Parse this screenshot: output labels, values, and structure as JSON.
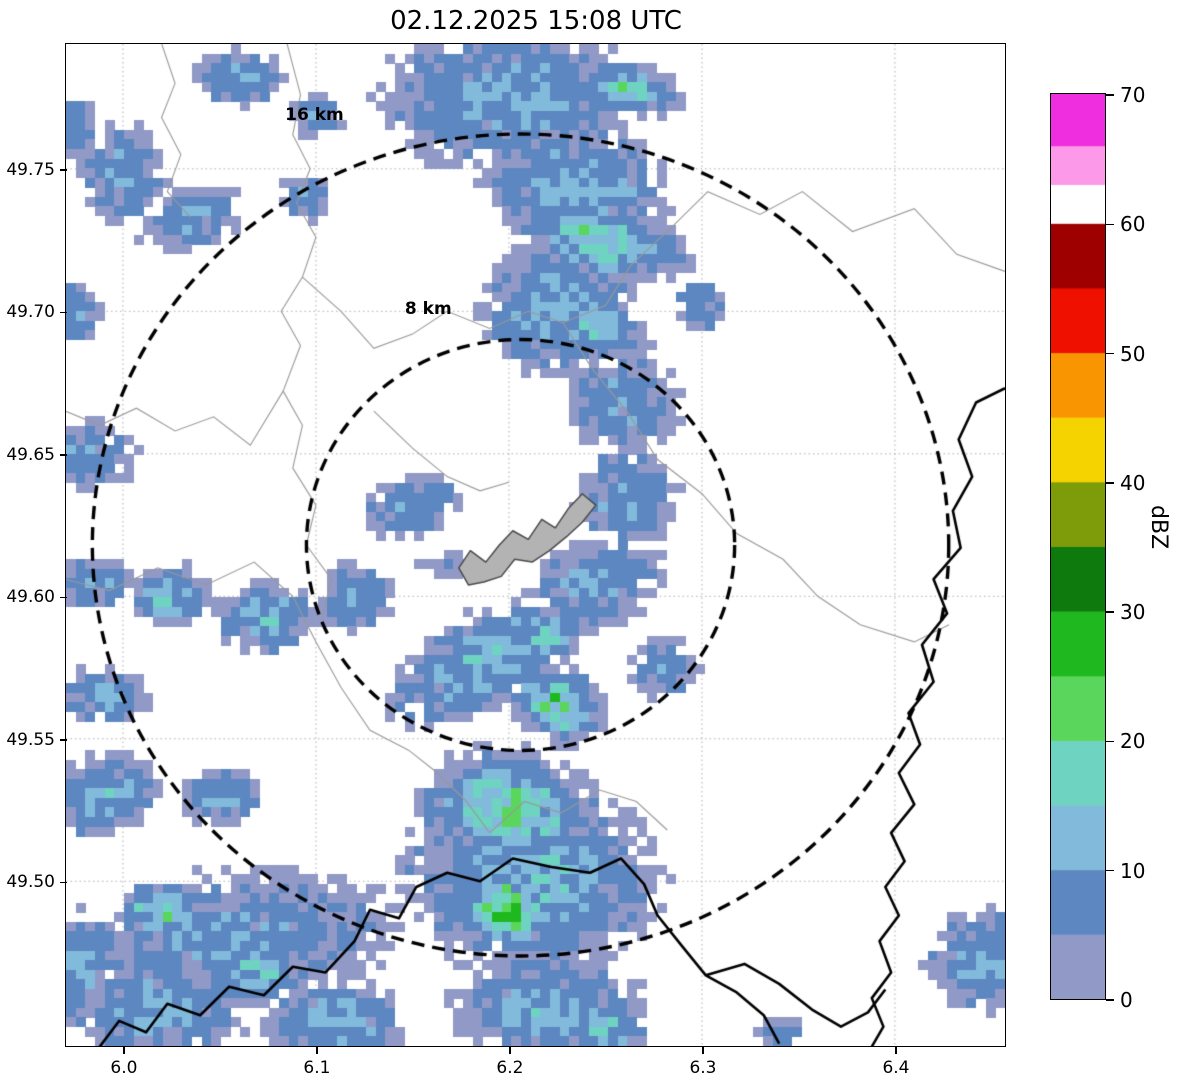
{
  "title": "02.12.2025 15:08 UTC",
  "colorbar": {
    "label": "dBZ",
    "ticks": {
      "values": [
        0,
        10,
        20,
        30,
        40,
        50,
        60,
        70
      ],
      "labels": [
        "0",
        "10",
        "20",
        "30",
        "40",
        "50",
        "60",
        "70"
      ]
    }
  },
  "chart_data": {
    "type": "heatmap",
    "title": "02.12.2025 15:08 UTC",
    "xlabel": "",
    "ylabel": "",
    "units": "dBZ",
    "grid": true,
    "background": "#ffffff",
    "xlim": [
      5.9705,
      6.457
    ],
    "ylim": [
      49.4422,
      49.7938
    ],
    "xticks": {
      "values": [
        6.0,
        6.1,
        6.2,
        6.3,
        6.4
      ],
      "labels": [
        "6.0",
        "6.1",
        "6.2",
        "6.3",
        "6.4"
      ]
    },
    "yticks": {
      "values": [
        49.5,
        49.55,
        49.6,
        49.65,
        49.7,
        49.75
      ],
      "labels": [
        "49.50",
        "49.55",
        "49.60",
        "49.65",
        "49.70",
        "49.75"
      ]
    },
    "colormap_levels": [
      {
        "from": 0,
        "to": 5,
        "color": "#9199c7"
      },
      {
        "from": 5,
        "to": 10,
        "color": "#5d87c1"
      },
      {
        "from": 10,
        "to": 15,
        "color": "#81badb"
      },
      {
        "from": 15,
        "to": 20,
        "color": "#6ed3c0"
      },
      {
        "from": 20,
        "to": 25,
        "color": "#5bd65c"
      },
      {
        "from": 25,
        "to": 30,
        "color": "#1fb81f"
      },
      {
        "from": 30,
        "to": 35,
        "color": "#0e7a0e"
      },
      {
        "from": 35,
        "to": 40,
        "color": "#7e9b0a"
      },
      {
        "from": 40,
        "to": 45,
        "color": "#f5d300"
      },
      {
        "from": 45,
        "to": 50,
        "color": "#f99500"
      },
      {
        "from": 50,
        "to": 55,
        "color": "#ef1000"
      },
      {
        "from": 55,
        "to": 60,
        "color": "#9e0000"
      },
      {
        "from": 60,
        "to": 63,
        "color": "#ffffff"
      },
      {
        "from": 63,
        "to": 66,
        "color": "#fc9ae9"
      },
      {
        "from": 66,
        "to": 70,
        "color": "#ef2ee0"
      }
    ],
    "radar_center": {
      "lon": 6.206,
      "lat": 49.618
    },
    "range_rings": [
      {
        "label": "16 km",
        "radius_km": 16,
        "label_pos": {
          "lon": 6.099,
          "lat": 49.769
        }
      },
      {
        "label": "8 km",
        "radius_km": 8,
        "label_pos": {
          "lon": 6.158,
          "lat": 49.701
        }
      }
    ],
    "cell_deg": {
      "lon": 0.005,
      "lat": 0.00335
    },
    "echo_blob_fields": [
      "lon",
      "lat",
      "rx_km",
      "ry_km",
      "angle_deg",
      "peak_dbz"
    ],
    "echo_blobs": [
      [
        6.2,
        49.775,
        4.2,
        2.6,
        0,
        10
      ],
      [
        6.235,
        49.745,
        2.0,
        3.0,
        80,
        12
      ],
      [
        6.248,
        49.725,
        1.2,
        2.6,
        75,
        17
      ],
      [
        6.262,
        49.778,
        0.8,
        1.6,
        80,
        16
      ],
      [
        6.225,
        49.7,
        2.4,
        2.2,
        0,
        12
      ],
      [
        6.243,
        49.695,
        0.9,
        1.8,
        70,
        15
      ],
      [
        6.26,
        49.668,
        2.0,
        1.8,
        0,
        9
      ],
      [
        6.3,
        49.702,
        1.0,
        1.0,
        0,
        8
      ],
      [
        6.26,
        49.635,
        1.8,
        1.8,
        0,
        9
      ],
      [
        6.245,
        49.605,
        2.2,
        1.6,
        20,
        10
      ],
      [
        6.28,
        49.575,
        1.2,
        1.2,
        0,
        8
      ],
      [
        6.19,
        49.578,
        3.6,
        1.6,
        30,
        12
      ],
      [
        6.215,
        49.585,
        1.6,
        0.8,
        30,
        16
      ],
      [
        6.225,
        49.562,
        1.1,
        1.4,
        60,
        19
      ],
      [
        6.2,
        49.525,
        1.8,
        2.6,
        80,
        18
      ],
      [
        6.2,
        49.49,
        1.1,
        1.5,
        80,
        25
      ],
      [
        6.225,
        49.5,
        2.2,
        2.0,
        0,
        14
      ],
      [
        6.21,
        49.5,
        4.5,
        3.2,
        0,
        10
      ],
      [
        6.22,
        49.455,
        3.0,
        1.8,
        0,
        12
      ],
      [
        6.25,
        49.447,
        1.2,
        1.0,
        0,
        15
      ],
      [
        6.15,
        49.632,
        1.8,
        1.1,
        10,
        9
      ],
      [
        6.12,
        49.6,
        1.3,
        1.3,
        0,
        9
      ],
      [
        6.165,
        49.612,
        1.2,
        0.8,
        0,
        5
      ],
      [
        5.975,
        49.7,
        1.0,
        1.2,
        0,
        8
      ],
      [
        5.978,
        49.65,
        1.2,
        2.0,
        80,
        9
      ],
      [
        5.985,
        49.605,
        1.5,
        1.0,
        0,
        9
      ],
      [
        6.025,
        49.6,
        1.2,
        1.0,
        0,
        14
      ],
      [
        6.075,
        49.593,
        1.6,
        1.2,
        0,
        12
      ],
      [
        5.99,
        49.565,
        1.6,
        1.0,
        0,
        10
      ],
      [
        5.99,
        49.53,
        2.0,
        1.4,
        10,
        11
      ],
      [
        6.05,
        49.53,
        1.4,
        1.0,
        0,
        10
      ],
      [
        6.06,
        49.48,
        5.5,
        2.4,
        5,
        9
      ],
      [
        6.02,
        49.455,
        3.0,
        1.6,
        0,
        11
      ],
      [
        6.02,
        49.49,
        1.1,
        0.8,
        0,
        20
      ],
      [
        6.07,
        49.468,
        1.4,
        0.9,
        0,
        14
      ],
      [
        6.11,
        49.45,
        2.2,
        1.4,
        0,
        12
      ],
      [
        5.975,
        49.47,
        1.5,
        2.0,
        0,
        10
      ],
      [
        6.0,
        49.748,
        1.4,
        1.7,
        0,
        10
      ],
      [
        6.035,
        49.733,
        1.9,
        1.1,
        15,
        9
      ],
      [
        6.06,
        49.782,
        1.5,
        1.0,
        0,
        10
      ],
      [
        6.095,
        49.74,
        1.0,
        1.0,
        0,
        8
      ],
      [
        5.975,
        49.765,
        0.9,
        1.2,
        0,
        8
      ],
      [
        6.1,
        49.768,
        1.0,
        0.8,
        0,
        8
      ],
      [
        6.447,
        49.472,
        2.0,
        1.8,
        0,
        10
      ],
      [
        6.34,
        49.447,
        0.8,
        0.6,
        0,
        8
      ]
    ],
    "admin_borders": [
      [
        [
          6.085,
          49.794
        ],
        [
          6.092,
          49.776
        ],
        [
          6.088,
          49.762
        ],
        [
          6.097,
          49.75
        ],
        [
          6.09,
          49.738
        ],
        [
          6.1,
          49.726
        ],
        [
          6.093,
          49.712
        ],
        [
          6.082,
          49.7
        ],
        [
          6.092,
          49.688
        ],
        [
          6.083,
          49.672
        ],
        [
          6.093,
          49.66
        ],
        [
          6.088,
          49.645
        ],
        [
          6.1,
          49.632
        ],
        [
          6.095,
          49.618
        ],
        [
          6.108,
          49.606
        ],
        [
          6.103,
          49.592
        ]
      ],
      [
        [
          5.97,
          49.665
        ],
        [
          5.988,
          49.66
        ],
        [
          6.007,
          49.666
        ],
        [
          6.027,
          49.658
        ],
        [
          6.047,
          49.663
        ],
        [
          6.066,
          49.653
        ],
        [
          6.083,
          49.672
        ]
      ],
      [
        [
          6.093,
          49.712
        ],
        [
          6.113,
          49.7
        ],
        [
          6.13,
          49.687
        ],
        [
          6.15,
          49.692
        ],
        [
          6.168,
          49.7
        ],
        [
          6.19,
          49.694
        ],
        [
          6.21,
          49.7
        ],
        [
          6.228,
          49.696
        ]
      ],
      [
        [
          6.228,
          49.696
        ],
        [
          6.25,
          49.702
        ],
        [
          6.263,
          49.716
        ],
        [
          6.285,
          49.73
        ],
        [
          6.303,
          49.742
        ],
        [
          6.33,
          49.734
        ],
        [
          6.352,
          49.742
        ],
        [
          6.378,
          49.728
        ],
        [
          6.41,
          49.736
        ],
        [
          6.432,
          49.72
        ],
        [
          6.457,
          49.714
        ]
      ],
      [
        [
          6.228,
          49.696
        ],
        [
          6.243,
          49.68
        ],
        [
          6.262,
          49.664
        ],
        [
          6.277,
          49.648
        ],
        [
          6.3,
          49.636
        ],
        [
          6.318,
          49.622
        ],
        [
          6.342,
          49.613
        ],
        [
          6.36,
          49.6
        ],
        [
          6.382,
          49.59
        ],
        [
          6.41,
          49.584
        ],
        [
          6.428,
          49.59
        ]
      ],
      [
        [
          5.97,
          49.606
        ],
        [
          5.993,
          49.602
        ],
        [
          6.018,
          49.61
        ],
        [
          6.043,
          49.604
        ],
        [
          6.068,
          49.612
        ],
        [
          6.088,
          49.6
        ],
        [
          6.1,
          49.584
        ],
        [
          6.113,
          49.568
        ],
        [
          6.128,
          49.553
        ],
        [
          6.148,
          49.546
        ],
        [
          6.163,
          49.538
        ],
        [
          6.178,
          49.528
        ],
        [
          6.19,
          49.517
        ]
      ],
      [
        [
          6.13,
          49.665
        ],
        [
          6.15,
          49.652
        ],
        [
          6.168,
          49.642
        ],
        [
          6.185,
          49.637
        ],
        [
          6.2,
          49.64
        ]
      ],
      [
        [
          6.19,
          49.517
        ],
        [
          6.208,
          49.528
        ],
        [
          6.227,
          49.524
        ],
        [
          6.247,
          49.532
        ],
        [
          6.266,
          49.528
        ],
        [
          6.282,
          49.518
        ]
      ],
      [
        [
          6.02,
          49.794
        ],
        [
          6.027,
          49.78
        ],
        [
          6.02,
          49.768
        ],
        [
          6.03,
          49.755
        ],
        [
          6.023,
          49.742
        ],
        [
          6.035,
          49.733
        ]
      ]
    ],
    "national_borders": [
      [
        [
          6.457,
          49.673
        ],
        [
          6.442,
          49.668
        ],
        [
          6.433,
          49.655
        ],
        [
          6.44,
          49.642
        ],
        [
          6.43,
          49.63
        ],
        [
          6.434,
          49.617
        ],
        [
          6.42,
          49.606
        ],
        [
          6.427,
          49.594
        ],
        [
          6.414,
          49.583
        ],
        [
          6.42,
          49.57
        ],
        [
          6.407,
          49.559
        ],
        [
          6.413,
          49.548
        ],
        [
          6.402,
          49.538
        ],
        [
          6.41,
          49.527
        ],
        [
          6.398,
          49.517
        ],
        [
          6.405,
          49.507
        ],
        [
          6.395,
          49.498
        ],
        [
          6.402,
          49.488
        ],
        [
          6.392,
          49.479
        ],
        [
          6.398,
          49.468
        ],
        [
          6.388,
          49.459
        ],
        [
          6.394,
          49.449
        ],
        [
          6.388,
          49.442
        ]
      ],
      [
        [
          5.988,
          49.442
        ],
        [
          5.998,
          49.451
        ],
        [
          6.012,
          49.447
        ],
        [
          6.023,
          49.457
        ],
        [
          6.04,
          49.453
        ],
        [
          6.055,
          49.463
        ],
        [
          6.073,
          49.46
        ],
        [
          6.088,
          49.47
        ],
        [
          6.105,
          49.468
        ],
        [
          6.12,
          49.479
        ],
        [
          6.128,
          49.49
        ],
        [
          6.143,
          49.487
        ],
        [
          6.152,
          49.498
        ],
        [
          6.168,
          49.503
        ],
        [
          6.185,
          49.5
        ],
        [
          6.202,
          49.508
        ],
        [
          6.222,
          49.505
        ],
        [
          6.242,
          49.503
        ],
        [
          6.258,
          49.508
        ],
        [
          6.27,
          49.499
        ],
        [
          6.277,
          49.488
        ],
        [
          6.29,
          49.477
        ],
        [
          6.302,
          49.467
        ],
        [
          6.318,
          49.461
        ],
        [
          6.332,
          49.453
        ],
        [
          6.34,
          49.443
        ]
      ],
      [
        [
          6.302,
          49.467
        ],
        [
          6.322,
          49.471
        ],
        [
          6.34,
          49.464
        ],
        [
          6.357,
          49.455
        ],
        [
          6.372,
          49.449
        ],
        [
          6.386,
          49.454
        ],
        [
          6.395,
          49.462
        ]
      ]
    ],
    "city_polygon": [
      [
        6.174,
        49.61
      ],
      [
        6.18,
        49.616
      ],
      [
        6.188,
        49.612
      ],
      [
        6.195,
        49.618
      ],
      [
        6.202,
        49.623
      ],
      [
        6.21,
        49.62
      ],
      [
        6.217,
        49.627
      ],
      [
        6.224,
        49.624
      ],
      [
        6.231,
        49.631
      ],
      [
        6.238,
        49.636
      ],
      [
        6.245,
        49.632
      ],
      [
        6.238,
        49.626
      ],
      [
        6.23,
        49.621
      ],
      [
        6.221,
        49.616
      ],
      [
        6.212,
        49.612
      ],
      [
        6.203,
        49.613
      ],
      [
        6.196,
        49.607
      ],
      [
        6.187,
        49.605
      ],
      [
        6.179,
        49.604
      ]
    ],
    "city_fill": "#b3b3b3",
    "city_edge": "#4a4a4a",
    "grid_color": "#b0b0b0",
    "admin_color": "#999999",
    "border_color": "#000000"
  }
}
